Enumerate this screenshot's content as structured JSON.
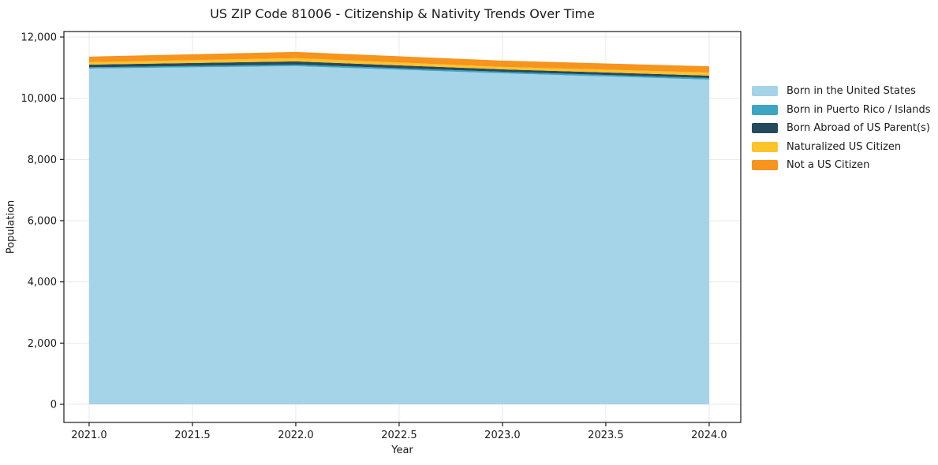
{
  "chart_data": {
    "type": "area",
    "stacked": true,
    "title": "US ZIP Code 81006 - Citizenship & Nativity Trends Over Time",
    "xlabel": "Year",
    "ylabel": "Population",
    "x": [
      2021,
      2022,
      2023,
      2024
    ],
    "series": [
      {
        "name": "Born in the United States",
        "color": "#a5d3e8",
        "values": [
          10970,
          11050,
          10815,
          10610
        ]
      },
      {
        "name": "Born in Puerto Rico / Islands",
        "color": "#3da5c4",
        "values": [
          40,
          50,
          50,
          50
        ]
      },
      {
        "name": "Born Abroad of US Parent(s)",
        "color": "#264a5d",
        "values": [
          90,
          105,
          80,
          80
        ]
      },
      {
        "name": "Naturalized US Citizen",
        "color": "#fcc32a",
        "values": [
          80,
          105,
          80,
          100
        ]
      },
      {
        "name": "Not a US Citizen",
        "color": "#f6941e",
        "values": [
          180,
          205,
          205,
          205
        ]
      }
    ],
    "x_ticks": [
      "2021.0",
      "2021.5",
      "2022.0",
      "2022.5",
      "2023.0",
      "2023.5",
      "2024.0"
    ],
    "x_tick_values": [
      2021,
      2021.5,
      2022,
      2022.5,
      2023,
      2023.5,
      2024
    ],
    "y_ticks": [
      "0",
      "2,000",
      "4,000",
      "6,000",
      "8,000",
      "10,000",
      "12,000"
    ],
    "y_tick_values": [
      0,
      2000,
      4000,
      6000,
      8000,
      10000,
      12000
    ],
    "xlim": [
      2020.878,
      2024.153
    ],
    "ylim": [
      -592,
      12180
    ],
    "grid": true,
    "grid_color": "#e9e9e9",
    "spine_color": "#1a1a1a",
    "tick_label_color": "#1a1a1a",
    "legend_position": "outside-right",
    "legend_frame": false
  }
}
